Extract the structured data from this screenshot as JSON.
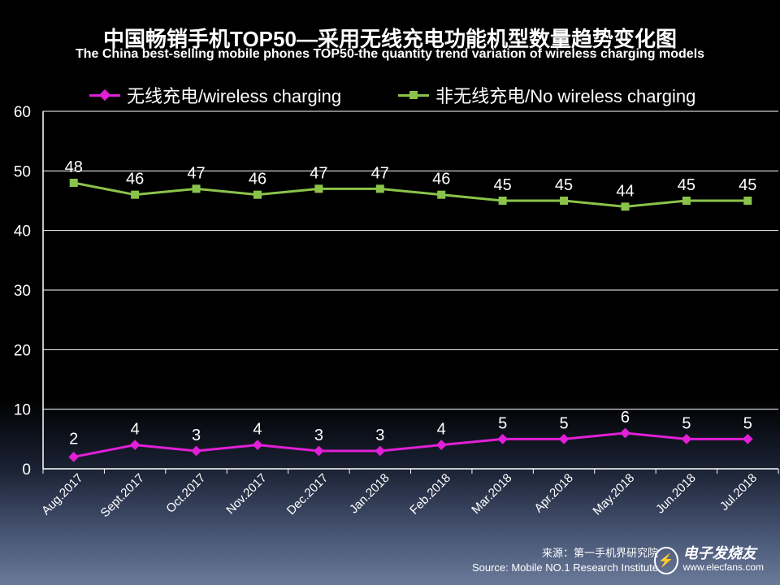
{
  "chart_data": {
    "type": "line",
    "title": "中国畅销手机TOP50—采用无线充电功能机型数量趋势变化图",
    "subtitle": "The China best-selling mobile phones TOP50-the quantity trend variation of wireless charging models",
    "xlabel": "",
    "ylabel": "",
    "ylim": [
      0,
      60
    ],
    "yticks": [
      0,
      10,
      20,
      30,
      40,
      50,
      60
    ],
    "grid": true,
    "legend_position": "top",
    "categories": [
      "Aug.2017",
      "Sept.2017",
      "Oct.2017",
      "Nov.2017",
      "Dec.2017",
      "Jan.2018",
      "Feb.2018",
      "Mar.2018",
      "Apr.2018",
      "May.2018",
      "Jun.2018",
      "Jul.2018"
    ],
    "series": [
      {
        "name": "无线充电/wireless charging",
        "color": "#e11fd6",
        "marker": "diamond",
        "values": [
          2,
          4,
          3,
          4,
          3,
          3,
          4,
          5,
          5,
          6,
          5,
          5
        ]
      },
      {
        "name": "非无线充电/No wireless charging",
        "color": "#8bc34a",
        "marker": "square",
        "values": [
          48,
          46,
          47,
          46,
          47,
          47,
          46,
          45,
          45,
          44,
          45,
          45
        ]
      }
    ]
  },
  "source": {
    "line1": "来源：第一手机界研究院",
    "line2": "Source: Mobile NO.1 Research Institute"
  },
  "watermark": {
    "icon": "lightning-logo-icon",
    "name": "电子发烧友",
    "url": "www.elecfans.com"
  }
}
